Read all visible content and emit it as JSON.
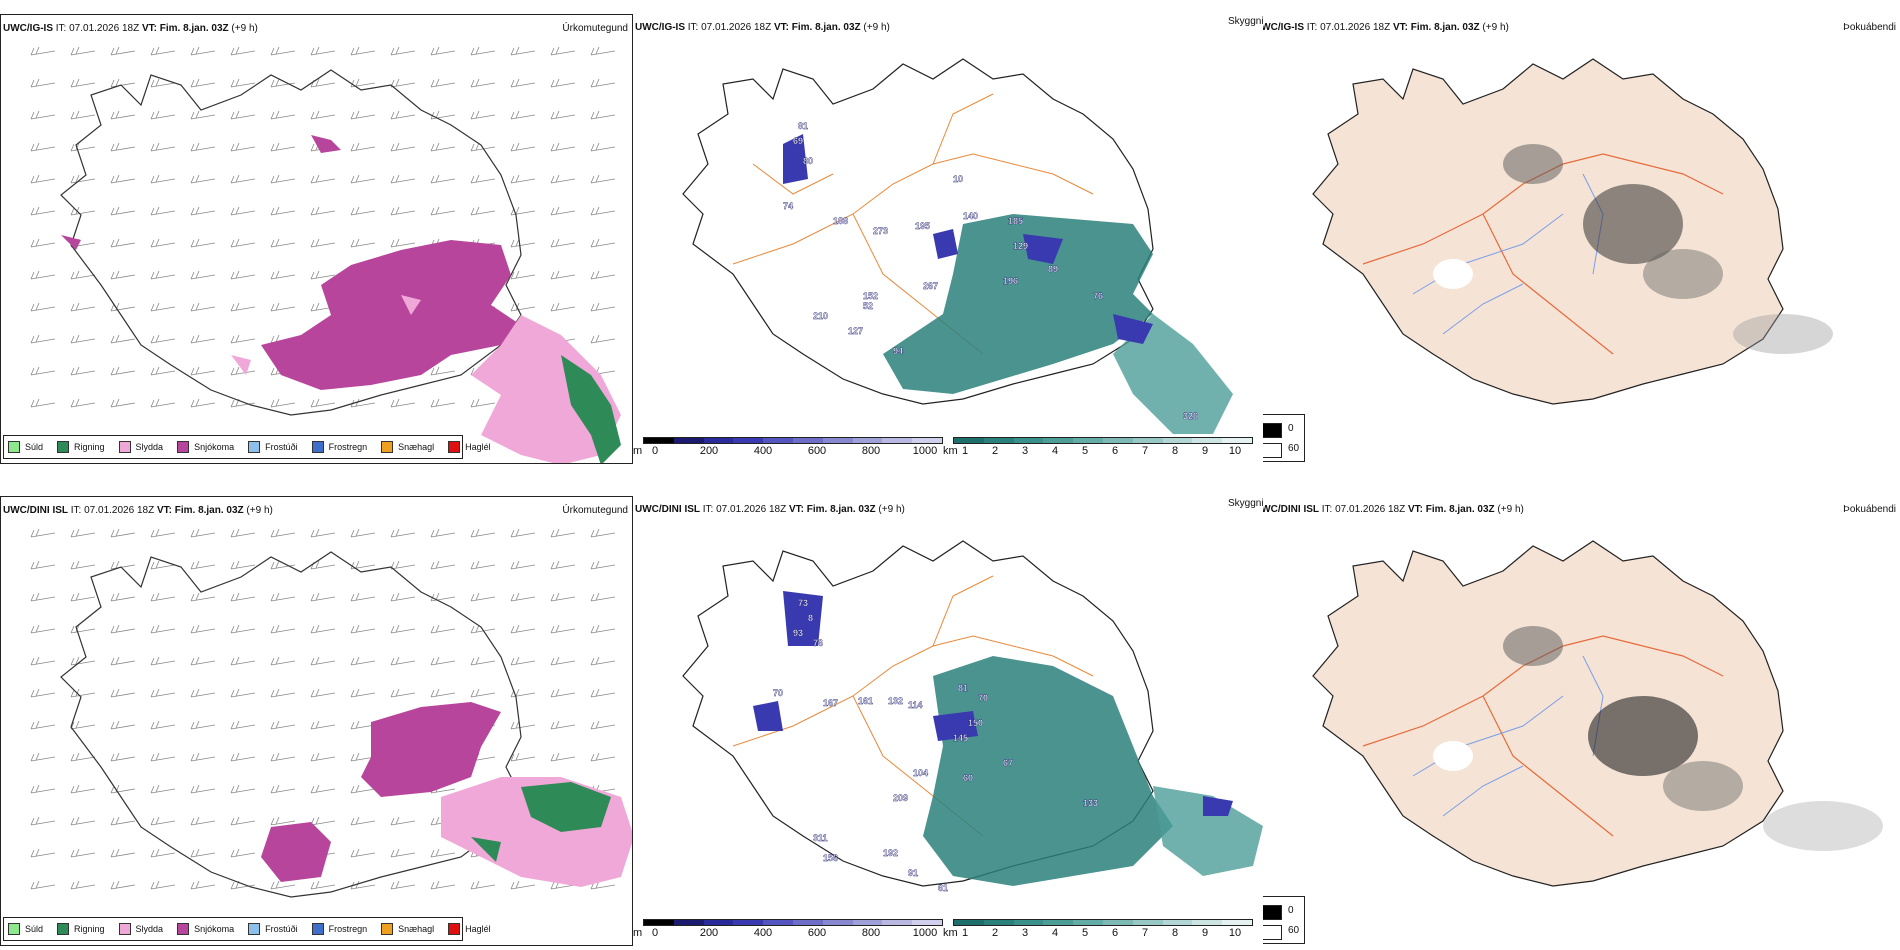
{
  "rows": [
    {
      "precip_header": {
        "model": "UWC/IG-IS",
        "it": " IT: 07.01.2026 18Z ",
        "vt": "VT: Fim. 8.jan. 03Z",
        "lead": " (+9 h)",
        "title": "Úrkomutegund"
      },
      "cloud_header": {
        "model": "UWC/IG-IS",
        "it": " IT: 07.01.2026 18Z ",
        "vt": "VT: Fim. 8.jan. 03Z",
        "lead": " (+9 h)",
        "title": "Skyggni"
      },
      "fog_header": {
        "model": "UWC/IG-IS",
        "it": " IT: 07.01.2026 18Z ",
        "vt": "VT: Fim. 8.jan. 03Z",
        "lead": " (+9 h)",
        "title": "Þokuábendi"
      },
      "cloud_labels": [
        "81",
        "69",
        "80",
        "10",
        "74",
        "188",
        "273",
        "195",
        "140",
        "185",
        "129",
        "89",
        "152",
        "267",
        "196",
        "76",
        "210",
        "52",
        "127",
        "94",
        "326"
      ]
    },
    {
      "precip_header": {
        "model": "UWC/DINI ISL",
        "it": " IT: 07.01.2026 18Z ",
        "vt": "VT: Fim. 8.jan. 03Z",
        "lead": " (+9 h)",
        "title": "Úrkomutegund"
      },
      "cloud_header": {
        "model": "UWC/DINI ISL",
        "it": " IT: 07.01.2026 18Z ",
        "vt": "VT: Fim. 8.jan. 03Z",
        "lead": " (+9 h)",
        "title": "Skyggni"
      },
      "fog_header": {
        "model": "UWC/DINI ISL",
        "it": " IT: 07.01.2026 18Z ",
        "vt": "VT: Fim. 8.jan. 03Z",
        "lead": " (+9 h)",
        "title": "Þokuábendi"
      },
      "cloud_labels": [
        "73",
        "8",
        "93",
        "76",
        "70",
        "167",
        "161",
        "132",
        "114",
        "81",
        "70",
        "150",
        "145",
        "104",
        "60",
        "67",
        "209",
        "311",
        "156",
        "192",
        "91",
        "61",
        "133"
      ]
    }
  ],
  "precip_legend": [
    {
      "label": "Súld",
      "color": "#8ee88e"
    },
    {
      "label": "Rigning",
      "color": "#2e8b57"
    },
    {
      "label": "Slydda",
      "color": "#f0a8d8"
    },
    {
      "label": "Snjókoma",
      "color": "#b8459c"
    },
    {
      "label": "Frostúði",
      "color": "#8fc0ec"
    },
    {
      "label": "Frostregn",
      "color": "#3f6fc8"
    },
    {
      "label": "Snæhagl",
      "color": "#f0a020"
    },
    {
      "label": "Haglél",
      "color": "#e01010"
    }
  ],
  "cloud_base_scale": {
    "unit": "m",
    "ticks": [
      "0",
      "200",
      "400",
      "600",
      "800",
      "1000"
    ],
    "colors": [
      "#000000",
      "#1a1a6e",
      "#2a2a9a",
      "#3a3ab0",
      "#5555c0",
      "#6e6ec8",
      "#8888d0",
      "#a0a0d8",
      "#b8b8e0",
      "#d0d0ec"
    ]
  },
  "visibility_scale": {
    "unit": "km",
    "ticks": [
      "1",
      "2",
      "3",
      "4",
      "5",
      "6",
      "7",
      "8",
      "9",
      "10"
    ],
    "colors": [
      "#1e6e6a",
      "#2a807b",
      "#3a908a",
      "#4e9e98",
      "#64aca6",
      "#7ebab5",
      "#98c8c4",
      "#b2d6d3",
      "#cce4e2",
      "#e6f2f1"
    ]
  },
  "fog_scale": {
    "high": "0",
    "low": "60"
  },
  "colors": {
    "snow": "#b8459c",
    "sleet": "#f0a8d8",
    "rain": "#2e8b57",
    "teal": "#2a807b",
    "cloud_blue": "#3a3ab0",
    "land": "#f5e4d6",
    "roads": "#e86a3c",
    "rivers": "#7a9ee8",
    "orange_roads": "#e88a3c"
  }
}
